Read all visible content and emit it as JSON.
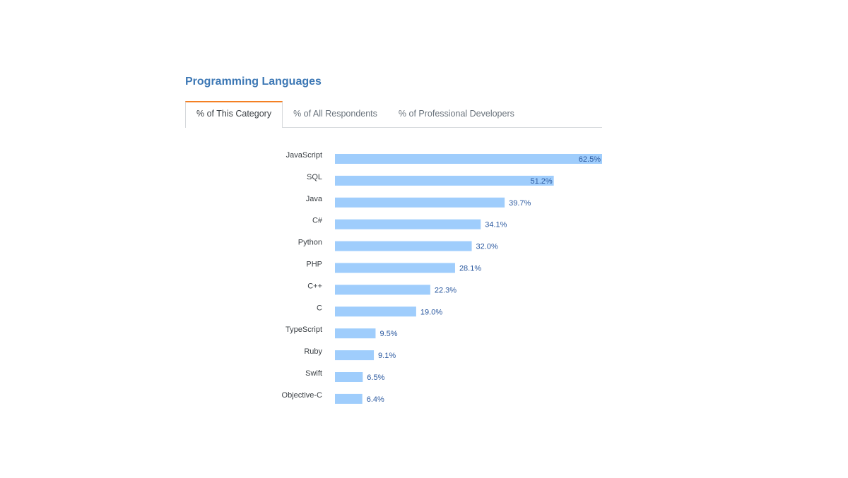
{
  "section": {
    "title": "Programming Languages"
  },
  "tabs": [
    {
      "label": "% of This Category",
      "active": true
    },
    {
      "label": "% of All Respondents",
      "active": false
    },
    {
      "label": "% of Professional Developers",
      "active": false
    }
  ],
  "colors": {
    "bar": "#9fcdfc",
    "value_label": "#2c5aa0",
    "category_label": "#3b4045",
    "title": "#3d78b5",
    "active_tab_accent": "#f48024"
  },
  "chart_data": {
    "type": "bar",
    "orientation": "horizontal",
    "title": "",
    "xlabel": "",
    "ylabel": "",
    "xlim": [
      0,
      62.5
    ],
    "grid": false,
    "categories": [
      "JavaScript",
      "SQL",
      "Java",
      "C#",
      "Python",
      "PHP",
      "C++",
      "C",
      "TypeScript",
      "Ruby",
      "Swift",
      "Objective-C"
    ],
    "values": [
      62.5,
      51.2,
      39.7,
      34.1,
      32.0,
      28.1,
      22.3,
      19.0,
      9.5,
      9.1,
      6.5,
      6.4
    ],
    "value_labels": [
      "62.5%",
      "51.2%",
      "39.7%",
      "34.1%",
      "32.0%",
      "28.1%",
      "22.3%",
      "19.0%",
      "9.5%",
      "9.1%",
      "6.5%",
      "6.4%"
    ]
  }
}
